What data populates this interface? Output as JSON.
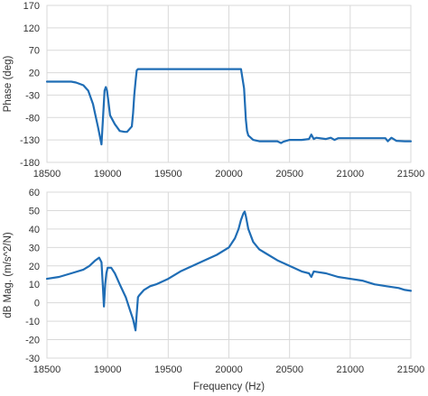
{
  "chart_data": [
    {
      "type": "line",
      "ylabel": "Phase (deg)",
      "xlabel": "",
      "xlim": [
        18500,
        21500
      ],
      "ylim": [
        -180,
        170
      ],
      "x_ticks": [
        18500,
        19000,
        19500,
        20000,
        20500,
        21000,
        21500
      ],
      "y_ticks": [
        170,
        120,
        70,
        20,
        -30,
        -80,
        -130,
        -180
      ],
      "grid": true,
      "color": "#1f6db5",
      "series": [
        {
          "x": [
            18500,
            18700,
            18740,
            18800,
            18840,
            18880,
            18920,
            18950,
            18975,
            18985,
            18995,
            19005,
            19020,
            19060,
            19100,
            19140,
            19160,
            19200,
            19210,
            19220,
            19230,
            19240,
            19250,
            19300,
            20000,
            20100,
            20125,
            20140,
            20150,
            20160,
            20200,
            20250,
            20300,
            20350,
            20400,
            20430,
            20450,
            20500,
            20600,
            20660,
            20680,
            20700,
            20720,
            20800,
            20840,
            20870,
            20900,
            21000,
            21100,
            21200,
            21290,
            21310,
            21340,
            21380,
            21450,
            21500
          ],
          "y": [
            0,
            0,
            -2,
            -8,
            -20,
            -50,
            -100,
            -140,
            -20,
            -12,
            -20,
            -40,
            -75,
            -95,
            -110,
            -112,
            -112,
            -100,
            -70,
            -30,
            0,
            25,
            28,
            28,
            28,
            28,
            -15,
            -85,
            -110,
            -120,
            -130,
            -133,
            -133,
            -133,
            -133,
            -137,
            -134,
            -130,
            -130,
            -128,
            -118,
            -128,
            -125,
            -128,
            -125,
            -130,
            -126,
            -126,
            -126,
            -126,
            -126,
            -133,
            -125,
            -132,
            -133,
            -133
          ]
        }
      ]
    },
    {
      "type": "line",
      "ylabel": "dB Mag. (m/s^2/N)",
      "xlabel": "Frequency (Hz)",
      "xlim": [
        18500,
        21500
      ],
      "ylim": [
        -30,
        60
      ],
      "x_ticks": [
        18500,
        19000,
        19500,
        20000,
        20500,
        21000,
        21500
      ],
      "y_ticks": [
        60,
        50,
        40,
        30,
        20,
        10,
        0,
        -10,
        -20,
        -30
      ],
      "grid": true,
      "color": "#1f6db5",
      "series": [
        {
          "x": [
            18500,
            18600,
            18700,
            18800,
            18850,
            18900,
            18930,
            18950,
            18960,
            18970,
            18980,
            18990,
            19000,
            19030,
            19060,
            19100,
            19150,
            19180,
            19210,
            19230,
            19240,
            19250,
            19260,
            19300,
            19350,
            19400,
            19500,
            19600,
            19700,
            19800,
            19900,
            20000,
            20050,
            20080,
            20100,
            20120,
            20130,
            20140,
            20160,
            20200,
            20250,
            20300,
            20400,
            20500,
            20600,
            20660,
            20680,
            20700,
            20800,
            20900,
            21000,
            21100,
            21200,
            21300,
            21400,
            21450,
            21500
          ],
          "y": [
            13,
            14,
            16,
            18,
            20,
            23,
            24.5,
            22,
            10,
            -2,
            10,
            16,
            19,
            19,
            16,
            10,
            3,
            -3,
            -9,
            -15,
            -6,
            3,
            4,
            7,
            9,
            10,
            13,
            17,
            20,
            23,
            26,
            30,
            35,
            40,
            45,
            48.5,
            49.5,
            47,
            40,
            33,
            29,
            27,
            23,
            20,
            17,
            16,
            14,
            17,
            16,
            14,
            13,
            12,
            10,
            9,
            8,
            7,
            6.5
          ]
        }
      ]
    }
  ]
}
